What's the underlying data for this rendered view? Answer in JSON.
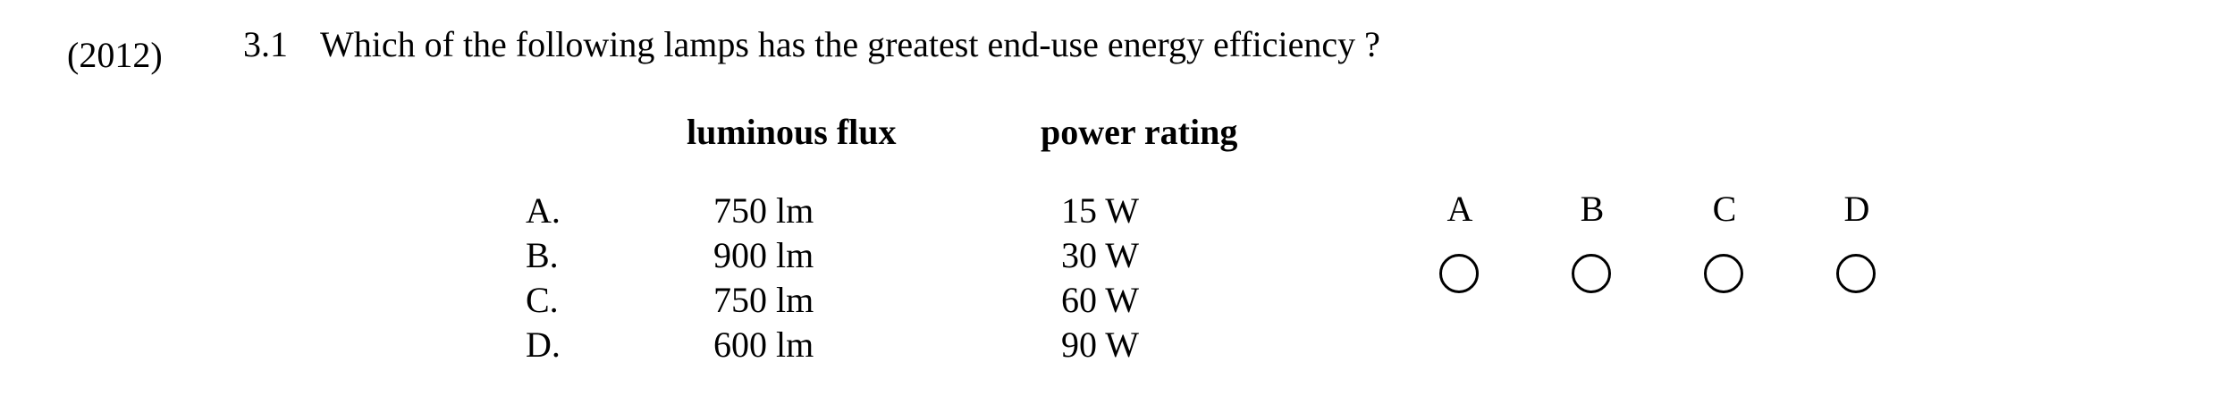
{
  "question": {
    "year": "(2012)",
    "number": "3.1",
    "text": "Which of the following lamps has the greatest end-use energy efficiency ?"
  },
  "table": {
    "headers": {
      "flux": "luminous flux",
      "power": "power rating"
    },
    "rows": [
      {
        "label": "A.",
        "flux": "750 lm",
        "power": "15 W"
      },
      {
        "label": "B.",
        "flux": "900 lm",
        "power": "30 W"
      },
      {
        "label": "C.",
        "flux": "750 lm",
        "power": "60 W"
      },
      {
        "label": "D.",
        "flux": "600 lm",
        "power": "90 W"
      }
    ]
  },
  "answer_options": [
    {
      "label": "A"
    },
    {
      "label": "B"
    },
    {
      "label": "C"
    },
    {
      "label": "D"
    }
  ]
}
